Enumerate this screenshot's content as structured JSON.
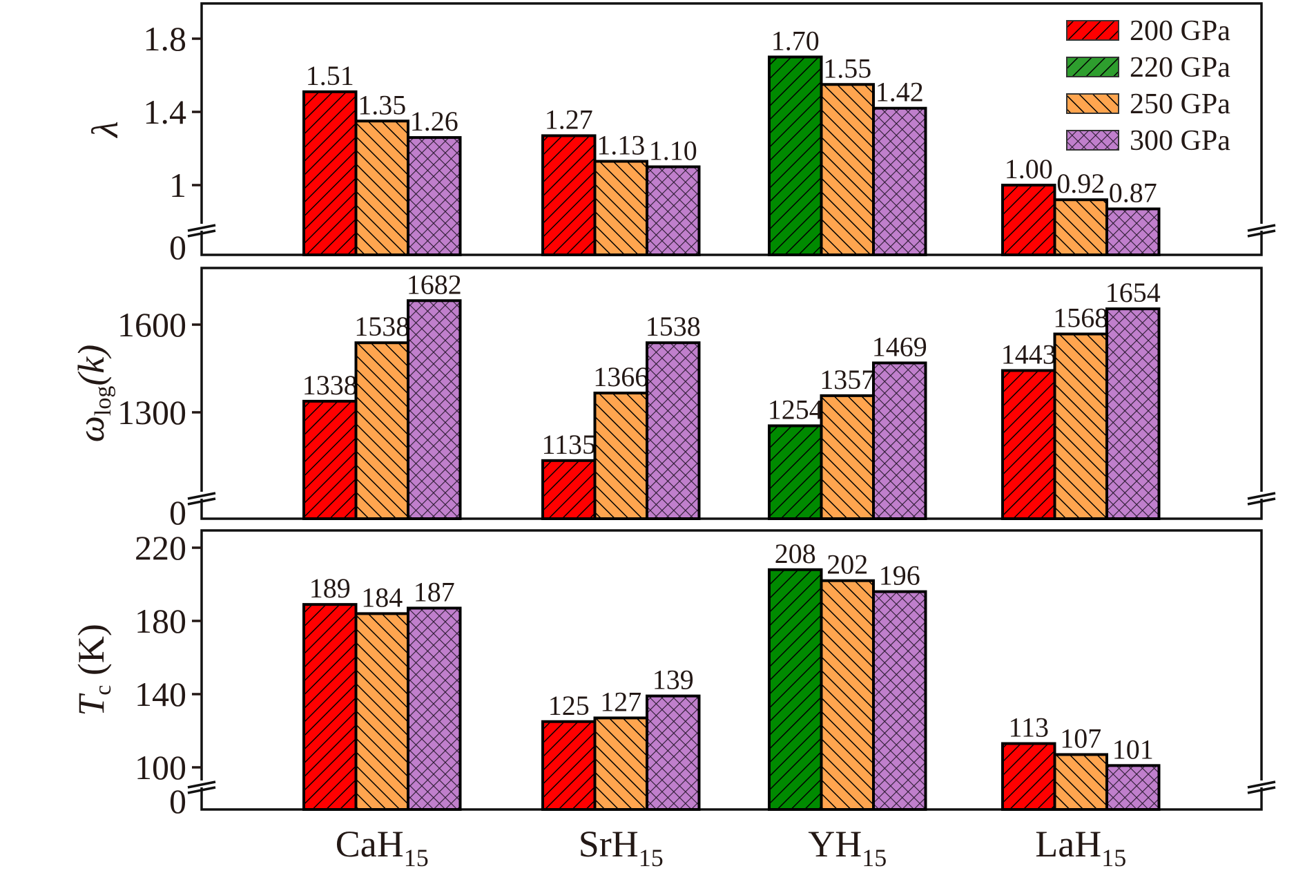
{
  "chart_data": [
    {
      "type": "bar",
      "panel": "top",
      "ylabel": "λ",
      "ytick_labels": [
        "0",
        "1",
        "1.4",
        "1.8"
      ],
      "yticks": [
        1.0,
        1.4,
        1.8
      ],
      "axis_break": true,
      "ylim": [
        0,
        1.95
      ],
      "categories": [
        "CaH15",
        "SrH15",
        "YH15",
        "LaH15"
      ],
      "bars": [
        {
          "category": "CaH15",
          "series": "200 GPa",
          "value": 1.51,
          "label": "1.51"
        },
        {
          "category": "CaH15",
          "series": "250 GPa",
          "value": 1.35,
          "label": "1.35"
        },
        {
          "category": "CaH15",
          "series": "300 GPa",
          "value": 1.26,
          "label": "1.26"
        },
        {
          "category": "SrH15",
          "series": "200 GPa",
          "value": 1.27,
          "label": "1.27"
        },
        {
          "category": "SrH15",
          "series": "250 GPa",
          "value": 1.13,
          "label": "1.13"
        },
        {
          "category": "SrH15",
          "series": "300 GPa",
          "value": 1.1,
          "label": "1.10"
        },
        {
          "category": "YH15",
          "series": "220 GPa",
          "value": 1.7,
          "label": "1.70"
        },
        {
          "category": "YH15",
          "series": "250 GPa",
          "value": 1.55,
          "label": "1.55"
        },
        {
          "category": "YH15",
          "series": "300 GPa",
          "value": 1.42,
          "label": "1.42"
        },
        {
          "category": "LaH15",
          "series": "200 GPa",
          "value": 1.0,
          "label": "1.00"
        },
        {
          "category": "LaH15",
          "series": "250 GPa",
          "value": 0.92,
          "label": "0.92"
        },
        {
          "category": "LaH15",
          "series": "300 GPa",
          "value": 0.87,
          "label": "0.87"
        }
      ]
    },
    {
      "type": "bar",
      "panel": "middle",
      "ylabel": "ωlog(k)",
      "ylabel_main": "ω",
      "ylabel_sub": "log",
      "ylabel_tail": "(k)",
      "ytick_labels": [
        "0",
        "1300",
        "1600"
      ],
      "yticks": [
        1300,
        1600
      ],
      "axis_break": true,
      "ylim": [
        0,
        1780
      ],
      "categories": [
        "CaH15",
        "SrH15",
        "YH15",
        "LaH15"
      ],
      "bars": [
        {
          "category": "CaH15",
          "series": "200 GPa",
          "value": 1338,
          "label": "1338"
        },
        {
          "category": "CaH15",
          "series": "250 GPa",
          "value": 1538,
          "label": "1538"
        },
        {
          "category": "CaH15",
          "series": "300 GPa",
          "value": 1682,
          "label": "1682"
        },
        {
          "category": "SrH15",
          "series": "200 GPa",
          "value": 1135,
          "label": "1135"
        },
        {
          "category": "SrH15",
          "series": "250 GPa",
          "value": 1366,
          "label": "1366"
        },
        {
          "category": "SrH15",
          "series": "300 GPa",
          "value": 1538,
          "label": "1538"
        },
        {
          "category": "YH15",
          "series": "220 GPa",
          "value": 1254,
          "label": "1254"
        },
        {
          "category": "YH15",
          "series": "250 GPa",
          "value": 1357,
          "label": "1357"
        },
        {
          "category": "YH15",
          "series": "300 GPa",
          "value": 1469,
          "label": "1469"
        },
        {
          "category": "LaH15",
          "series": "200 GPa",
          "value": 1443,
          "label": "1443"
        },
        {
          "category": "LaH15",
          "series": "250 GPa",
          "value": 1568,
          "label": "1568"
        },
        {
          "category": "LaH15",
          "series": "300 GPa",
          "value": 1654,
          "label": "1654"
        }
      ]
    },
    {
      "type": "bar",
      "panel": "bottom",
      "ylabel": "Tc (K)",
      "ylabel_main": "T",
      "ylabel_sub": "c",
      "ylabel_tail": " (K)",
      "ytick_labels": [
        "0",
        "100",
        "140",
        "180",
        "220"
      ],
      "yticks": [
        100,
        140,
        180,
        220
      ],
      "axis_break": true,
      "ylim": [
        0,
        230
      ],
      "categories": [
        "CaH15",
        "SrH15",
        "YH15",
        "LaH15"
      ],
      "bars": [
        {
          "category": "CaH15",
          "series": "200 GPa",
          "value": 189,
          "label": "189"
        },
        {
          "category": "CaH15",
          "series": "250 GPa",
          "value": 184,
          "label": "184"
        },
        {
          "category": "CaH15",
          "series": "300 GPa",
          "value": 187,
          "label": "187"
        },
        {
          "category": "SrH15",
          "series": "200 GPa",
          "value": 125,
          "label": "125"
        },
        {
          "category": "SrH15",
          "series": "250 GPa",
          "value": 127,
          "label": "127"
        },
        {
          "category": "SrH15",
          "series": "300 GPa",
          "value": 139,
          "label": "139"
        },
        {
          "category": "YH15",
          "series": "220 GPa",
          "value": 208,
          "label": "208"
        },
        {
          "category": "YH15",
          "series": "250 GPa",
          "value": 202,
          "label": "202"
        },
        {
          "category": "YH15",
          "series": "300 GPa",
          "value": 196,
          "label": "196"
        },
        {
          "category": "LaH15",
          "series": "200 GPa",
          "value": 113,
          "label": "113"
        },
        {
          "category": "LaH15",
          "series": "250 GPa",
          "value": 107,
          "label": "107"
        },
        {
          "category": "LaH15",
          "series": "300 GPa",
          "value": 101,
          "label": "101"
        }
      ]
    }
  ],
  "x_categories": [
    {
      "main": "CaH",
      "sub": "15"
    },
    {
      "main": "SrH",
      "sub": "15"
    },
    {
      "main": "YH",
      "sub": "15"
    },
    {
      "main": "LaH",
      "sub": "15"
    }
  ],
  "legend": {
    "placement": "top-right",
    "items": [
      {
        "label": "200 GPa",
        "color": "#FF0000",
        "pattern": "hatch-forward"
      },
      {
        "label": "220 GPa",
        "color": "#2E9E2E",
        "pattern": "hatch-forward"
      },
      {
        "label": "250 GPa",
        "color": "#FFA54F",
        "pattern": "hatch-back"
      },
      {
        "label": "300 GPa",
        "color": "#C07FCC",
        "pattern": "crosshatch"
      }
    ]
  },
  "series_colors": {
    "200 GPa": "#FF0000",
    "220 GPa": "#008A00",
    "250 GPa": "#FFA54F",
    "300 GPa": "#C07FCC"
  }
}
